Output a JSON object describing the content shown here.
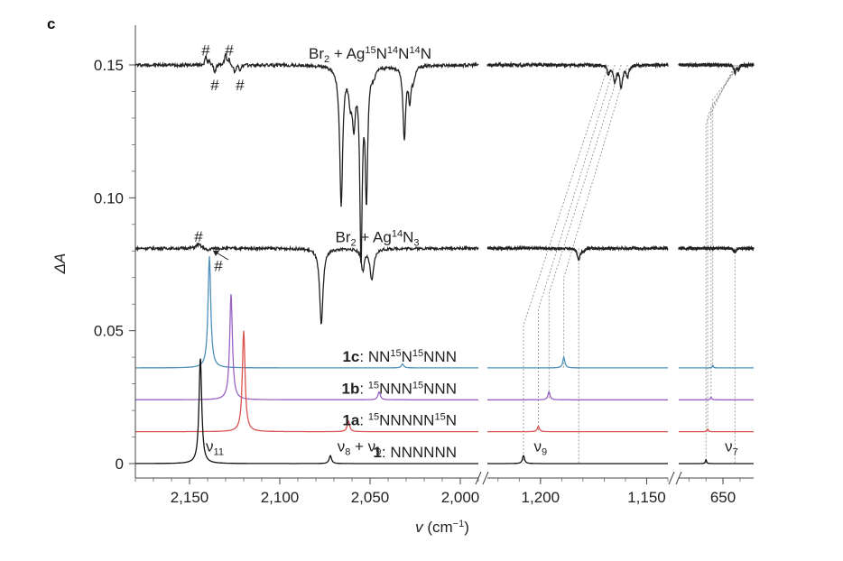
{
  "chart_data": {
    "type": "line",
    "panel_label": "c",
    "ylabel": "ΔA",
    "xlabel": "v (cm−1)",
    "ylim": [
      0,
      0.16
    ],
    "y_ticks": [
      0,
      0.05,
      0.1,
      0.15
    ],
    "y_tick_labels": [
      "0",
      "0.05",
      "0.10",
      "0.15"
    ],
    "x_segments": [
      {
        "range": [
          2180,
          1990
        ],
        "ticks": [
          2150,
          2100,
          2050,
          2000
        ],
        "tick_labels": [
          "2,150",
          "2,100",
          "2,050",
          "2,000"
        ]
      },
      {
        "range": [
          1225,
          1140
        ],
        "ticks": [
          1200,
          1150
        ],
        "tick_labels": [
          "1,200",
          "1,150"
        ]
      },
      {
        "range": [
          676,
          632
        ],
        "ticks": [
          650
        ],
        "tick_labels": [
          "650"
        ]
      }
    ],
    "series": [
      {
        "label_parts": [
          [
            "Br",
            ""
          ],
          [
            "2",
            "sub"
          ],
          [
            " + Ag",
            ""
          ],
          [
            "15",
            "sup"
          ],
          [
            "N",
            ""
          ],
          [
            "14",
            "sup"
          ],
          [
            "N",
            ""
          ],
          [
            "14",
            "sup"
          ],
          [
            "N",
            ""
          ]
        ],
        "color": "#222222",
        "baseline": 0.15,
        "label_x": 2050,
        "peaks": [
          {
            "x": 2141,
            "a": 0.003,
            "w": 0.6
          },
          {
            "x": 2139,
            "a": 0.002,
            "w": 0.5
          },
          {
            "x": 2136,
            "a": -0.003,
            "w": 0.6
          },
          {
            "x": 2130,
            "a": 0.004,
            "w": 0.7
          },
          {
            "x": 2128,
            "a": 0.002,
            "w": 0.5
          },
          {
            "x": 2125,
            "a": -0.003,
            "w": 0.6
          },
          {
            "x": 2122,
            "a": -0.002,
            "w": 0.6
          },
          {
            "x": 2066,
            "a": -0.052,
            "w": 1.0
          },
          {
            "x": 2061,
            "a": -0.01,
            "w": 1.0
          },
          {
            "x": 2059,
            "a": -0.02,
            "w": 1.0
          },
          {
            "x": 2055,
            "a": -0.071,
            "w": 0.8
          },
          {
            "x": 2052,
            "a": -0.048,
            "w": 0.8
          },
          {
            "x": 2048,
            "a": -0.003,
            "w": 1.2
          },
          {
            "x": 2031,
            "a": -0.027,
            "w": 0.9
          },
          {
            "x": 2028,
            "a": -0.012,
            "w": 0.8
          },
          {
            "x": 2026,
            "a": -0.005,
            "w": 1.0
          },
          {
            "x": 1168,
            "a": -0.003,
            "w": 0.7
          },
          {
            "x": 1165,
            "a": -0.006,
            "w": 0.8
          },
          {
            "x": 1162,
            "a": -0.008,
            "w": 0.8
          },
          {
            "x": 1159,
            "a": -0.004,
            "w": 0.7
          },
          {
            "x": 643,
            "a": -0.003,
            "w": 0.6
          },
          {
            "x": 641,
            "a": -0.002,
            "w": 0.5
          }
        ],
        "noise": 0.0006
      },
      {
        "label_parts": [
          [
            "Br",
            ""
          ],
          [
            "2",
            "sub"
          ],
          [
            " + Ag",
            ""
          ],
          [
            "14",
            "sup"
          ],
          [
            "N",
            ""
          ],
          [
            "3",
            "sub"
          ]
        ],
        "color": "#222222",
        "baseline": 0.081,
        "label_x": 2046,
        "peaks": [
          {
            "x": 2145,
            "a": 0.0015,
            "w": 1.5
          },
          {
            "x": 2140,
            "a": -0.001,
            "w": 1.0
          },
          {
            "x": 2077,
            "a": -0.029,
            "w": 1.1
          },
          {
            "x": 2054,
            "a": -0.008,
            "w": 1.0
          },
          {
            "x": 2049,
            "a": -0.012,
            "w": 1.2
          },
          {
            "x": 1182,
            "a": -0.004,
            "w": 0.8
          },
          {
            "x": 1180,
            "a": -0.001,
            "w": 0.6
          },
          {
            "x": 643,
            "a": -0.0015,
            "w": 0.7
          }
        ],
        "noise": 0.0005
      },
      {
        "label_parts": [
          [
            "1c",
            "bold"
          ],
          [
            ": NN",
            ""
          ],
          [
            "15",
            "sup"
          ],
          [
            "N",
            ""
          ],
          [
            "15",
            "sup"
          ],
          [
            "NNN",
            ""
          ]
        ],
        "color": "#4e90b8",
        "baseline": 0.036,
        "label_x": 2002,
        "peaks": [
          {
            "x": 2139,
            "a": 0.042,
            "w": 0.9
          },
          {
            "x": 2032,
            "a": 0.0015,
            "w": 0.8
          },
          {
            "x": 1189,
            "a": 0.004,
            "w": 0.6
          },
          {
            "x": 656,
            "a": 0.001,
            "w": 0.4
          }
        ],
        "noise": 0
      },
      {
        "label_parts": [
          [
            "1b",
            "bold"
          ],
          [
            ": ",
            ""
          ],
          [
            "15",
            "sup"
          ],
          [
            "NNN",
            ""
          ],
          [
            "15",
            "sup"
          ],
          [
            "NNN",
            ""
          ]
        ],
        "color": "#9a63c3",
        "baseline": 0.024,
        "label_x": 2002,
        "peaks": [
          {
            "x": 2127,
            "a": 0.04,
            "w": 0.9
          },
          {
            "x": 2045,
            "a": 0.003,
            "w": 0.8
          },
          {
            "x": 1196,
            "a": 0.003,
            "w": 0.6
          },
          {
            "x": 657,
            "a": 0.001,
            "w": 0.4
          }
        ],
        "noise": 0
      },
      {
        "label_parts": [
          [
            "1a",
            "bold"
          ],
          [
            ": ",
            ""
          ],
          [
            "15",
            "sup"
          ],
          [
            "NNNNN",
            ""
          ],
          [
            "15",
            "sup"
          ],
          [
            "N",
            ""
          ]
        ],
        "color": "#d9534f",
        "baseline": 0.012,
        "label_x": 2002,
        "peaks": [
          {
            "x": 2120,
            "a": 0.038,
            "w": 0.9
          },
          {
            "x": 2062,
            "a": 0.004,
            "w": 0.8
          },
          {
            "x": 1201,
            "a": 0.002,
            "w": 0.6
          },
          {
            "x": 659,
            "a": 0.001,
            "w": 0.4
          }
        ],
        "noise": 0
      },
      {
        "label_parts": [
          [
            "1",
            "bold"
          ],
          [
            ": NNNNNN",
            ""
          ]
        ],
        "color": "#111111",
        "baseline": 0.0,
        "label_x": 2002,
        "peaks": [
          {
            "x": 2144,
            "a": 0.04,
            "w": 0.9
          },
          {
            "x": 2072,
            "a": 0.003,
            "w": 0.8
          },
          {
            "x": 1208,
            "a": 0.003,
            "w": 0.6
          },
          {
            "x": 660,
            "a": 0.0015,
            "w": 0.4
          }
        ],
        "noise": 0
      }
    ],
    "annotations": [
      {
        "parts": [
          [
            "#",
            ""
          ]
        ],
        "x": 2141,
        "y": 0.1535
      },
      {
        "parts": [
          [
            "#",
            ""
          ]
        ],
        "x": 2128,
        "y": 0.1535
      },
      {
        "parts": [
          [
            "#",
            ""
          ]
        ],
        "x": 2136,
        "y": 0.1405
      },
      {
        "parts": [
          [
            "#",
            ""
          ]
        ],
        "x": 2122,
        "y": 0.1405
      },
      {
        "parts": [
          [
            "#",
            ""
          ]
        ],
        "x": 2145,
        "y": 0.0835
      },
      {
        "parts": [
          [
            "#",
            ""
          ]
        ],
        "x": 2134,
        "y": 0.0725
      },
      {
        "parts": [
          [
            "ν",
            ""
          ],
          [
            "11",
            "sub"
          ]
        ],
        "x": 2136,
        "y": 0.0045
      },
      {
        "parts": [
          [
            "ν",
            ""
          ],
          [
            "8",
            "sub"
          ],
          [
            " + ν",
            ""
          ],
          [
            "9",
            "sub"
          ]
        ],
        "x": 2056,
        "y": 0.0045
      },
      {
        "parts": [
          [
            "ν",
            ""
          ],
          [
            "9",
            "sub"
          ]
        ],
        "x": 1200,
        "y": 0.0045
      },
      {
        "parts": [
          [
            "ν",
            ""
          ],
          [
            "7",
            "sub"
          ]
        ],
        "x": 645,
        "y": 0.0045
      }
    ],
    "correlation_lines": [
      {
        "from": [
          1168,
          0.15
        ],
        "to": [
          1208,
          0.0
        ],
        "mid": [
          1208,
          0.052
        ]
      },
      {
        "from": [
          1165,
          0.15
        ],
        "to": [
          1201,
          0.012
        ],
        "mid": [
          1201,
          0.058
        ]
      },
      {
        "from": [
          1162,
          0.15
        ],
        "to": [
          1196,
          0.024
        ],
        "mid": [
          1196,
          0.064
        ]
      },
      {
        "from": [
          1159,
          0.15
        ],
        "to": [
          1189,
          0.036
        ],
        "mid": [
          1189,
          0.07
        ]
      },
      {
        "from": [
          1182,
          0.081
        ],
        "to": [
          1182,
          0.0
        ],
        "mid": null
      },
      {
        "from": [
          643,
          0.15
        ],
        "to": [
          660,
          0.0
        ],
        "mid": [
          660,
          0.128
        ]
      },
      {
        "from": [
          642,
          0.15
        ],
        "to": [
          659,
          0.012
        ],
        "mid": [
          659,
          0.131
        ]
      },
      {
        "from": [
          641,
          0.15
        ],
        "to": [
          657,
          0.024
        ],
        "mid": [
          657,
          0.134
        ]
      },
      {
        "from": [
          640,
          0.15
        ],
        "to": [
          656,
          0.036
        ],
        "mid": [
          656,
          0.137
        ]
      },
      {
        "from": [
          643,
          0.081
        ],
        "to": [
          643,
          0.0
        ],
        "mid": null
      }
    ]
  }
}
